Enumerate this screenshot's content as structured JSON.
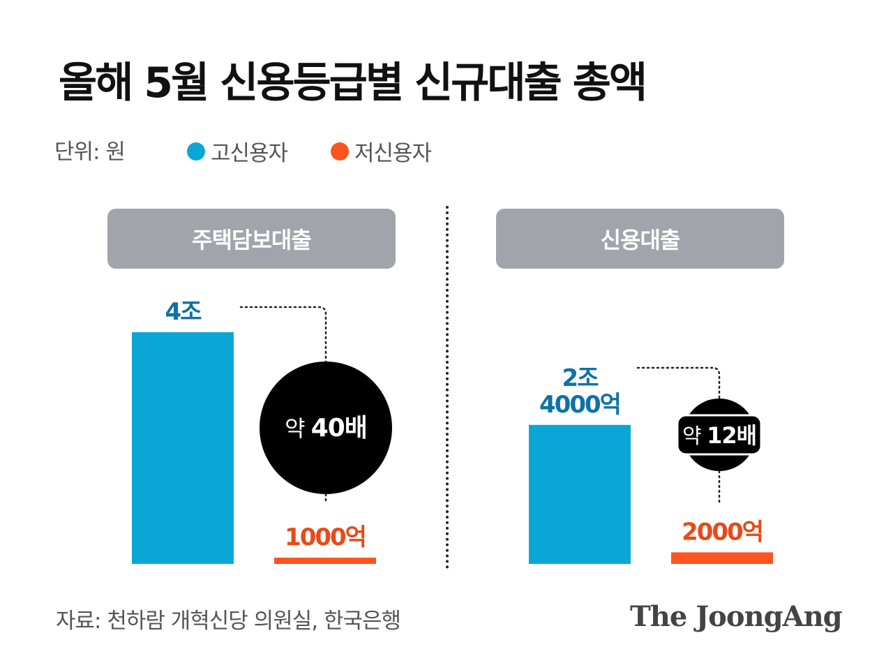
{
  "title": "올해 5월 신용등급별 신규대출 총액",
  "unit_label": "단위: 원",
  "legend": [
    {
      "label": "고신용자",
      "color": "#0aa7d6"
    },
    {
      "label": "저신용자",
      "color": "#fc5520"
    }
  ],
  "source": "자료: 천하람 개혁신당 의원실, 한국은행",
  "logo_text": "The JoongAng",
  "chart_data": [
    {
      "type": "bar",
      "title": "주택담보대출",
      "categories": [
        "고신용자",
        "저신용자"
      ],
      "values": [
        40000,
        1000
      ],
      "value_unit": "억 원",
      "data_labels": [
        "4조",
        "1000억"
      ],
      "colors": [
        "#0aa7d6",
        "#fc5520"
      ],
      "annotation": {
        "prefix": "약",
        "emph": "40배"
      }
    },
    {
      "type": "bar",
      "title": "신용대출",
      "categories": [
        "고신용자",
        "저신용자"
      ],
      "values": [
        24000,
        2000
      ],
      "value_unit": "억 원",
      "data_labels": [
        "2조\n4000억",
        "2000억"
      ],
      "colors": [
        "#0aa7d6",
        "#fc5520"
      ],
      "annotation": {
        "prefix": "약",
        "emph": "12배"
      }
    }
  ]
}
